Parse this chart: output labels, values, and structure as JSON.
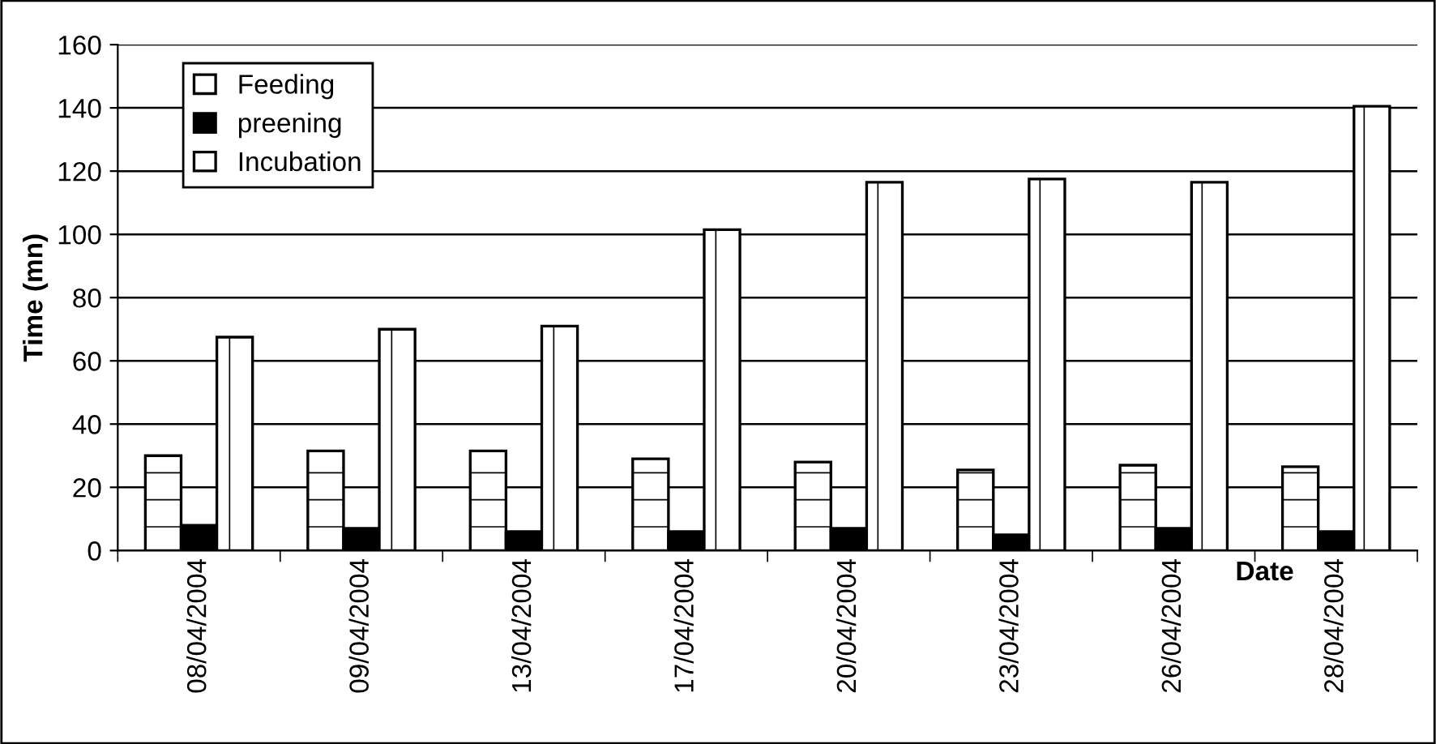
{
  "chart_data": {
    "type": "bar",
    "xlabel": "Date",
    "ylabel": "Time (mn)",
    "categories": [
      "08/04/2004",
      "09/04/2004",
      "13/04/2004",
      "17/04/2004",
      "20/04/2004",
      "23/04/2004",
      "26/04/2004",
      "28/04/2004"
    ],
    "series": [
      {
        "name": "Feeding",
        "color": "#ffffff",
        "values": [
          30,
          31.5,
          31.5,
          29,
          28,
          25.5,
          27,
          26.5
        ]
      },
      {
        "name": "preening",
        "color": "#000000",
        "values": [
          8,
          7,
          6,
          6,
          7,
          5,
          7,
          6
        ]
      },
      {
        "name": "Incubation",
        "color": "#ffffff",
        "values": [
          67.5,
          70,
          71,
          101.5,
          116.5,
          117.5,
          116.5,
          140.5
        ]
      }
    ],
    "ylim": [
      0,
      160
    ],
    "yticks": [
      0,
      20,
      40,
      60,
      80,
      100,
      120,
      140,
      160
    ],
    "grid": "y",
    "legend": "top left"
  }
}
